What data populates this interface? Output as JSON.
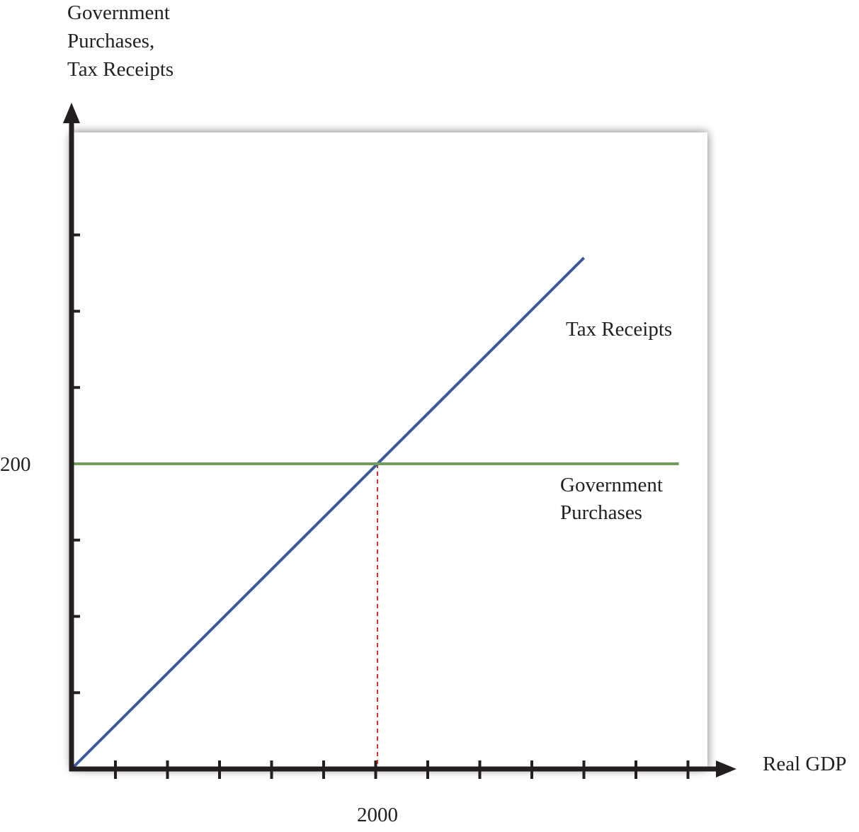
{
  "chart_data": {
    "type": "line",
    "ylabel": [
      "Government",
      "Purchases,",
      "Tax Receipts"
    ],
    "xlabel": "Real GDP",
    "x_tick_labels": [
      {
        "x": 2000,
        "label": "2000"
      }
    ],
    "y_tick_labels": [
      {
        "y": 200,
        "label": "200"
      }
    ],
    "xlim": [
      0,
      4000
    ],
    "ylim": [
      0,
      400
    ],
    "x_tick_step": 500,
    "y_tick_step": 50,
    "series": [
      {
        "name": "Tax Receipts",
        "color": "#3c5a9a",
        "x": [
          0,
          3350
        ],
        "y": [
          0,
          335
        ]
      },
      {
        "name": "Government Purchases",
        "color": "#6f9e5b",
        "x": [
          0,
          3970
        ],
        "y": [
          200,
          200
        ]
      }
    ],
    "series_labels": [
      {
        "series": "Tax Receipts",
        "lines": [
          "Tax Receipts"
        ]
      },
      {
        "series": "Government Purchases",
        "lines": [
          "Government",
          "Purchases"
        ]
      }
    ],
    "reference_line": {
      "x": 2000,
      "y": 200,
      "color": "#d9302c",
      "style": "dashed"
    },
    "grid": false,
    "legend": "none"
  }
}
